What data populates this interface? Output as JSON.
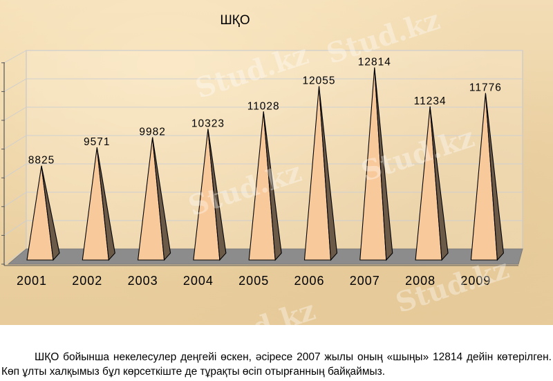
{
  "chart_data": {
    "type": "bar",
    "style": "3d-pyramid",
    "title": "ШҚО",
    "categories": [
      "2001",
      "2002",
      "2003",
      "2004",
      "2005",
      "2006",
      "2007",
      "2008",
      "2009"
    ],
    "values": [
      8825,
      9571,
      9982,
      10323,
      11028,
      12055,
      12814,
      11234,
      11776
    ],
    "ylim": [
      5000,
      13000
    ],
    "grid": true,
    "legend": "none",
    "colors": {
      "bar_front": "#f8c99a",
      "bar_side": "#6b5a48",
      "floor": "#8c8c8c"
    }
  },
  "caption": {
    "text": "ШҚО бойынша некелесулер деңгейі өскен, әсіресе 2007 жылы оның «шыңы» 12814 дейін көтерілген. Көп ұлты халқымыз бұл көрсеткіште де тұрақты өсіп отырғанның байқаймыз."
  },
  "watermark": {
    "text": "Stud.kz"
  }
}
